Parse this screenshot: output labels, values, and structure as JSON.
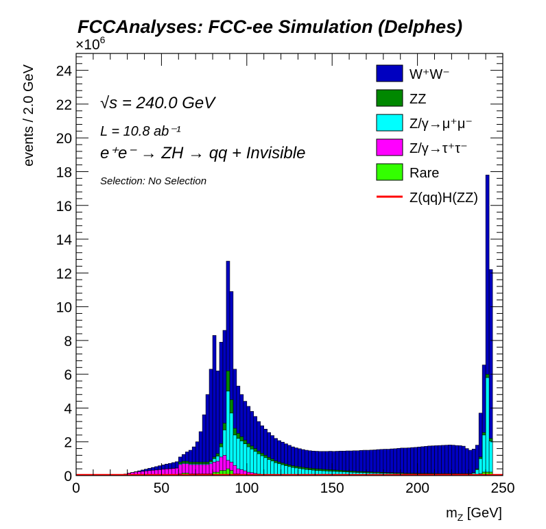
{
  "chart_data": {
    "type": "area",
    "title": "FCCAnalyses: FCC-ee Simulation (Delphes)",
    "xlabel": "m_Z [GeV]",
    "ylabel": "events / 2.0 GeV",
    "y_multiplier_label": "×10^6",
    "xlim": [
      0,
      250
    ],
    "ylim": [
      0,
      25
    ],
    "xticks": [
      0,
      50,
      100,
      150,
      200,
      250
    ],
    "yticks": [
      0,
      2,
      4,
      6,
      8,
      10,
      12,
      14,
      16,
      18,
      20,
      22,
      24
    ],
    "grid": false,
    "legend_position": "top-right",
    "annotations": {
      "energy": "√s = 240.0 GeV",
      "lumi": "L = 10.8 ab⁻¹",
      "process": "e⁺e⁻ → ZH → qq + Invisible",
      "selection": "Selection: No Selection"
    },
    "bin_width": 2.0,
    "x_bin_centers": [
      27,
      29,
      31,
      33,
      35,
      37,
      39,
      41,
      43,
      45,
      47,
      49,
      51,
      53,
      55,
      57,
      59,
      61,
      63,
      65,
      67,
      69,
      71,
      73,
      75,
      77,
      79,
      81,
      83,
      85,
      87,
      89,
      91,
      93,
      95,
      97,
      99,
      101,
      103,
      105,
      107,
      109,
      111,
      113,
      115,
      117,
      119,
      121,
      123,
      125,
      127,
      129,
      131,
      133,
      135,
      137,
      139,
      141,
      143,
      145,
      147,
      149,
      151,
      153,
      155,
      157,
      159,
      161,
      163,
      165,
      167,
      169,
      171,
      173,
      175,
      177,
      179,
      181,
      183,
      185,
      187,
      189,
      191,
      193,
      195,
      197,
      199,
      201,
      203,
      205,
      207,
      209,
      211,
      213,
      215,
      217,
      219,
      221,
      223,
      225,
      227,
      229,
      231,
      233,
      235,
      237,
      239,
      241,
      243,
      245
    ],
    "stack_totals_1e6": [
      0.05,
      0.09,
      0.14,
      0.18,
      0.23,
      0.28,
      0.33,
      0.38,
      0.43,
      0.48,
      0.53,
      0.58,
      0.63,
      0.68,
      0.72,
      0.77,
      0.82,
      1.1,
      1.2,
      1.35,
      1.5,
      1.7,
      2.0,
      2.6,
      3.6,
      4.8,
      6.3,
      8.3,
      6.2,
      7.9,
      8.6,
      12.2,
      10.1,
      6.3,
      5.3,
      4.8,
      4.4,
      4.1,
      3.8,
      3.5,
      3.2,
      2.95,
      2.75,
      2.55,
      2.35,
      2.2,
      2.05,
      1.95,
      1.85,
      1.75,
      1.65,
      1.58,
      1.52,
      1.47,
      1.43,
      1.4,
      1.38,
      1.37,
      1.36,
      1.36,
      1.36,
      1.37,
      1.37,
      1.38,
      1.39,
      1.4,
      1.41,
      1.41,
      1.42,
      1.43,
      1.44,
      1.45,
      1.45,
      1.46,
      1.47,
      1.48,
      1.49,
      1.5,
      1.5,
      1.51,
      1.52,
      1.53,
      1.54,
      1.55,
      1.55,
      1.56,
      1.57,
      1.58,
      1.59,
      1.6,
      1.61,
      1.62,
      1.63,
      1.64,
      1.65,
      1.66,
      1.67,
      1.68,
      1.69,
      1.7,
      1.68,
      1.62,
      1.58,
      1.7,
      1.85,
      3.8,
      6.6,
      17.8,
      12.2,
      0.3
    ],
    "series": [
      {
        "name": "W⁺W⁻",
        "color": "#0000c0",
        "values_1e6": [
          0.0,
          0.0,
          0.0,
          0.0,
          0.02,
          0.05,
          0.08,
          0.11,
          0.14,
          0.17,
          0.2,
          0.23,
          0.26,
          0.29,
          0.32,
          0.35,
          0.38,
          0.3,
          0.4,
          0.55,
          0.7,
          0.9,
          1.2,
          1.8,
          2.8,
          4.0,
          5.4,
          7.2,
          4.9,
          6.0,
          5.5,
          6.5,
          6.4,
          3.5,
          2.8,
          2.5,
          2.3,
          2.2,
          2.05,
          1.9,
          1.75,
          1.63,
          1.55,
          1.47,
          1.39,
          1.33,
          1.27,
          1.24,
          1.2,
          1.16,
          1.12,
          1.09,
          1.07,
          1.05,
          1.04,
          1.03,
          1.03,
          1.04,
          1.04,
          1.06,
          1.07,
          1.09,
          1.1,
          1.12,
          1.14,
          1.16,
          1.18,
          1.19,
          1.21,
          1.23,
          1.25,
          1.27,
          1.28,
          1.3,
          1.32,
          1.34,
          1.36,
          1.38,
          1.39,
          1.41,
          1.43,
          1.45,
          1.47,
          1.49,
          1.5,
          1.52,
          1.54,
          1.56,
          1.58,
          1.6,
          1.62,
          1.63,
          1.65,
          1.66,
          1.67,
          1.68,
          1.69,
          1.68,
          1.66,
          1.65,
          1.62,
          1.48,
          1.38,
          1.4,
          1.4,
          2.6,
          4.0,
          11.8,
          10.0,
          0.0
        ]
      },
      {
        "name": "ZZ",
        "color": "#008800",
        "values_1e6": [
          0,
          0,
          0,
          0,
          0,
          0,
          0,
          0,
          0,
          0,
          0,
          0,
          0,
          0,
          0,
          0,
          0,
          0.1,
          0.1,
          0.1,
          0.1,
          0.1,
          0.1,
          0.1,
          0.1,
          0.1,
          0.1,
          0.1,
          0.15,
          0.2,
          0.4,
          1.2,
          0.8,
          0.4,
          0.3,
          0.25,
          0.22,
          0.2,
          0.18,
          0.17,
          0.16,
          0.15,
          0.14,
          0.13,
          0.12,
          0.11,
          0.1,
          0.1,
          0.1,
          0.1,
          0.1,
          0.1,
          0.1,
          0.1,
          0.1,
          0.1,
          0.1,
          0.1,
          0.1,
          0.09,
          0.09,
          0.09,
          0.08,
          0.08,
          0.08,
          0.07,
          0.07,
          0.07,
          0.07,
          0.06,
          0.06,
          0.06,
          0.06,
          0.05,
          0.05,
          0.05,
          0.05,
          0.04,
          0.04,
          0.04,
          0.04,
          0.04,
          0.04,
          0.03,
          0.03,
          0.03,
          0.03,
          0.03,
          0.03,
          0.03,
          0.03,
          0.03,
          0.02,
          0.02,
          0.02,
          0.02,
          0.02,
          0.02,
          0.02,
          0.02,
          0.02,
          0.02,
          0.02,
          0.02,
          0.05,
          0.1,
          0.15,
          0.2,
          0.15,
          0.0
        ]
      },
      {
        "name": "Z/γ→μ⁺μ⁻",
        "color": "#00ffff",
        "values_1e6": [
          0,
          0,
          0,
          0,
          0,
          0,
          0,
          0,
          0,
          0,
          0,
          0,
          0,
          0,
          0,
          0,
          0,
          0.05,
          0.05,
          0.05,
          0.05,
          0.05,
          0.05,
          0.05,
          0.05,
          0.05,
          0.1,
          0.2,
          0.3,
          0.6,
          1.5,
          4.1,
          2.9,
          1.8,
          1.8,
          1.7,
          1.6,
          1.5,
          1.4,
          1.3,
          1.2,
          1.1,
          1.0,
          0.9,
          0.82,
          0.76,
          0.7,
          0.64,
          0.58,
          0.53,
          0.48,
          0.45,
          0.42,
          0.39,
          0.36,
          0.34,
          0.32,
          0.3,
          0.29,
          0.28,
          0.27,
          0.26,
          0.25,
          0.24,
          0.23,
          0.22,
          0.21,
          0.2,
          0.19,
          0.18,
          0.18,
          0.17,
          0.16,
          0.16,
          0.15,
          0.15,
          0.14,
          0.14,
          0.13,
          0.13,
          0.12,
          0.12,
          0.12,
          0.11,
          0.11,
          0.11,
          0.1,
          0.1,
          0.1,
          0.1,
          0.1,
          0.1,
          0.1,
          0.1,
          0.1,
          0.1,
          0.1,
          0.1,
          0.1,
          0.1,
          0.1,
          0.1,
          0.1,
          0.15,
          0.3,
          0.9,
          2.2,
          5.6,
          1.85,
          0.0
        ]
      },
      {
        "name": "Z/γ→τ⁺τ⁻",
        "color": "#ff00ff",
        "values_1e6": [
          0.05,
          0.09,
          0.14,
          0.18,
          0.21,
          0.23,
          0.25,
          0.27,
          0.29,
          0.31,
          0.33,
          0.35,
          0.37,
          0.39,
          0.4,
          0.42,
          0.44,
          0.55,
          0.55,
          0.55,
          0.55,
          0.55,
          0.55,
          0.55,
          0.55,
          0.55,
          0.6,
          0.6,
          0.65,
          0.8,
          0.9,
          0.5,
          0.5,
          0.5,
          0.3,
          0.3,
          0.25,
          0.18,
          0.15,
          0.11,
          0.07,
          0.05,
          0.04,
          0.03,
          0.02,
          0.0,
          0.0,
          0.0,
          0.0,
          0.0,
          0.0,
          0.0,
          0.0,
          0.0,
          0.0,
          0.0,
          0.0,
          0.0,
          0.0,
          0.0,
          0.0,
          0.0,
          0.0,
          0.0,
          0.0,
          0.0,
          0.0,
          0.0,
          0.0,
          0.0,
          0.0,
          0.0,
          0.0,
          0.0,
          0.0,
          0.0,
          0.0,
          0.0,
          0.0,
          0.0,
          0.0,
          0.0,
          0.0,
          0.0,
          0.0,
          0.0,
          0.0,
          0.0,
          0.0,
          0.0,
          0.0,
          0.0,
          0.0,
          0.0,
          0.0,
          0.0,
          0.0,
          0.0,
          0.0,
          0.0,
          0.0,
          0.0,
          0.0,
          0.0,
          0.0,
          0.0,
          0.0,
          0.0,
          0.0,
          0.0
        ]
      },
      {
        "name": "Rare",
        "color": "#33ff00",
        "values_1e6": [
          0,
          0,
          0,
          0,
          0,
          0,
          0,
          0,
          0,
          0,
          0,
          0,
          0,
          0,
          0,
          0,
          0,
          0.1,
          0.15,
          0.15,
          0.1,
          0.1,
          0.1,
          0.1,
          0.1,
          0.1,
          0.1,
          0.2,
          0.2,
          0.3,
          0.3,
          0.4,
          0.3,
          0.1,
          0.1,
          0.05,
          0.03,
          0.02,
          0.02,
          0.02,
          0.02,
          0.02,
          0.02,
          0.02,
          0.02,
          0.0,
          0.0,
          0.0,
          0.0,
          0.0,
          0.0,
          0.0,
          0.0,
          0.0,
          0.0,
          0.0,
          0.0,
          0.0,
          0.0,
          0.0,
          0.0,
          0.0,
          0.0,
          0.0,
          0.0,
          0.0,
          0.0,
          0.0,
          0.0,
          0.0,
          0.0,
          0.0,
          0.0,
          0.0,
          0.0,
          0.0,
          0.0,
          0.0,
          0.0,
          0.0,
          0.0,
          0.0,
          0.0,
          0.0,
          0.0,
          0.0,
          0.0,
          0.0,
          0.0,
          0.0,
          0.0,
          0.0,
          0.0,
          0.0,
          0.0,
          0.0,
          0.0,
          0.0,
          0.0,
          0.0,
          0.0,
          0.0,
          0.0,
          0.0,
          0.05,
          0.1,
          0.2,
          0.2,
          0.2,
          0.0
        ]
      },
      {
        "name": "Z(qq)H(ZZ)",
        "color": "#ff0000",
        "style": "line",
        "values_1e6": [
          0.0
        ]
      }
    ]
  }
}
